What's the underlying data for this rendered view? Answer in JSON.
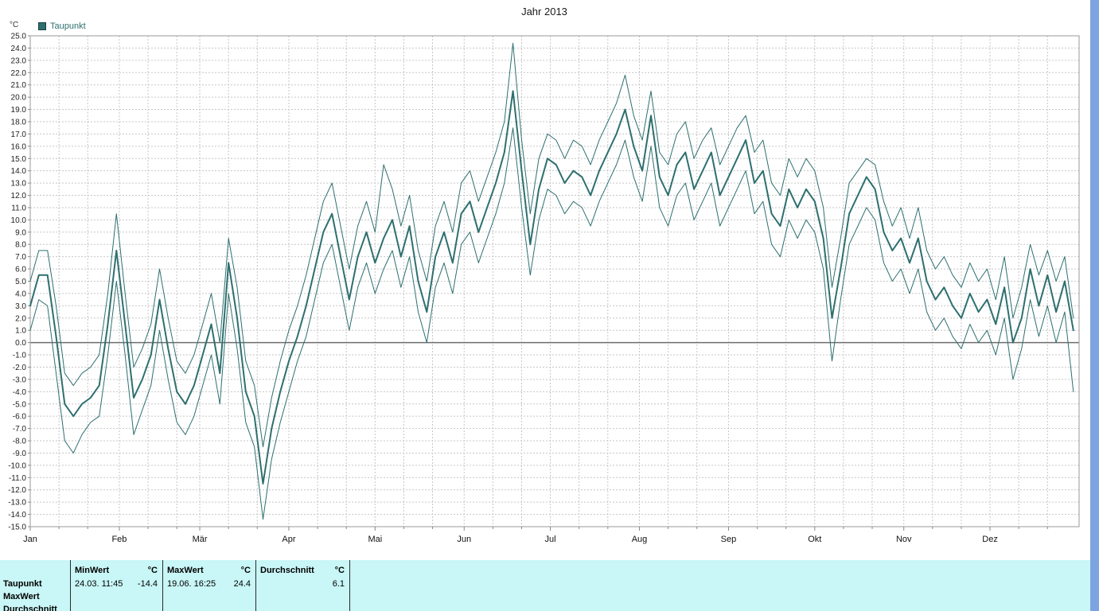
{
  "window": {
    "title": "Jahr 2013"
  },
  "chart": {
    "y_axis_unit": "°C",
    "legend_label": "Taupunkt"
  },
  "colors": {
    "series": "#2e6f6f",
    "table_background": "#c9f6f6",
    "window_edge": "#7da4e0",
    "grid": "#c6c6c6"
  },
  "chart_data": {
    "type": "line",
    "title": "Jahr 2013",
    "ylabel": "°C",
    "ylim": [
      -15.0,
      25.0
    ],
    "ytick_step": 1.0,
    "xlim": [
      1,
      366
    ],
    "x_unit": "day_of_year",
    "grid": "dashed; horizontal every 1.0 °C, vertical every 10 days; solid zero line",
    "legend_position": "top-left",
    "color": "#2e6f6f",
    "month_labels": [
      "Jan",
      "Feb",
      "Mär",
      "Apr",
      "Mai",
      "Jun",
      "Jul",
      "Aug",
      "Sep",
      "Okt",
      "Nov",
      "Dez"
    ],
    "month_start_days": [
      1,
      32,
      60,
      91,
      121,
      152,
      182,
      213,
      244,
      274,
      305,
      335
    ],
    "x": [
      1,
      4,
      7,
      10,
      13,
      16,
      19,
      22,
      25,
      28,
      31,
      34,
      37,
      40,
      43,
      46,
      49,
      52,
      55,
      58,
      61,
      64,
      67,
      70,
      73,
      76,
      79,
      82,
      85,
      88,
      91,
      94,
      97,
      100,
      103,
      106,
      109,
      112,
      115,
      118,
      121,
      124,
      127,
      130,
      133,
      136,
      139,
      142,
      145,
      148,
      151,
      154,
      157,
      160,
      163,
      166,
      169,
      172,
      175,
      178,
      181,
      184,
      187,
      190,
      193,
      196,
      199,
      202,
      205,
      208,
      211,
      214,
      217,
      220,
      223,
      226,
      229,
      232,
      235,
      238,
      241,
      244,
      247,
      250,
      253,
      256,
      259,
      262,
      265,
      268,
      271,
      274,
      277,
      280,
      283,
      286,
      289,
      292,
      295,
      298,
      301,
      304,
      307,
      310,
      313,
      316,
      319,
      322,
      325,
      328,
      331,
      334,
      337,
      340,
      343,
      346,
      349,
      352,
      355,
      358,
      361,
      364
    ],
    "series": [
      {
        "name": "Taupunkt Minimum",
        "width": 1,
        "values": [
          1.0,
          3.5,
          3.0,
          -2.5,
          -8.0,
          -9.0,
          -7.5,
          -6.5,
          -6.0,
          -1.0,
          5.0,
          -1.0,
          -7.5,
          -5.5,
          -3.5,
          1.0,
          -3.0,
          -6.5,
          -7.5,
          -6.0,
          -3.5,
          -1.0,
          -5.0,
          4.0,
          -0.5,
          -6.5,
          -8.5,
          -14.4,
          -9.5,
          -6.5,
          -4.0,
          -1.5,
          0.5,
          3.5,
          6.5,
          8.0,
          4.5,
          1.0,
          4.5,
          6.5,
          4.0,
          6.0,
          7.5,
          4.5,
          7.0,
          2.5,
          0.0,
          4.5,
          6.5,
          4.0,
          8.0,
          9.0,
          6.5,
          8.5,
          10.5,
          13.0,
          17.5,
          11.0,
          5.5,
          10.0,
          12.5,
          12.0,
          10.5,
          11.5,
          11.0,
          9.5,
          11.5,
          13.0,
          14.5,
          16.5,
          13.5,
          11.5,
          16.0,
          11.0,
          9.5,
          12.0,
          13.0,
          10.0,
          11.5,
          13.0,
          9.5,
          11.0,
          12.5,
          14.0,
          10.5,
          11.5,
          8.0,
          7.0,
          10.0,
          8.5,
          10.0,
          9.0,
          6.0,
          -1.5,
          3.5,
          8.0,
          9.5,
          11.0,
          10.0,
          6.5,
          5.0,
          6.0,
          4.0,
          6.0,
          2.5,
          1.0,
          2.0,
          0.5,
          -0.5,
          1.5,
          0.0,
          1.0,
          -1.0,
          2.0,
          -3.0,
          -0.5,
          3.5,
          0.5,
          3.0,
          0.0,
          2.5,
          -4.0
        ]
      },
      {
        "name": "Taupunkt Mittel",
        "width": 2,
        "values": [
          3.0,
          5.5,
          5.5,
          0.5,
          -5.0,
          -6.0,
          -5.0,
          -4.5,
          -3.5,
          1.5,
          7.5,
          1.5,
          -4.5,
          -3.0,
          -1.0,
          3.5,
          -0.5,
          -4.0,
          -5.0,
          -3.5,
          -1.0,
          1.5,
          -2.5,
          6.5,
          2.0,
          -4.0,
          -6.0,
          -11.5,
          -7.0,
          -4.0,
          -1.5,
          0.5,
          3.0,
          6.0,
          9.0,
          10.5,
          7.0,
          3.5,
          7.0,
          9.0,
          6.5,
          8.5,
          10.0,
          7.0,
          9.5,
          5.0,
          2.5,
          7.0,
          9.0,
          6.5,
          10.5,
          11.5,
          9.0,
          11.0,
          13.0,
          15.5,
          20.5,
          14.0,
          8.0,
          12.5,
          15.0,
          14.5,
          13.0,
          14.0,
          13.5,
          12.0,
          14.0,
          15.5,
          17.0,
          19.0,
          16.0,
          14.0,
          18.5,
          13.5,
          12.0,
          14.5,
          15.5,
          12.5,
          14.0,
          15.5,
          12.0,
          13.5,
          15.0,
          16.5,
          13.0,
          14.0,
          10.5,
          9.5,
          12.5,
          11.0,
          12.5,
          11.5,
          8.5,
          2.0,
          6.0,
          10.5,
          12.0,
          13.5,
          12.5,
          9.0,
          7.5,
          8.5,
          6.5,
          8.5,
          5.0,
          3.5,
          4.5,
          3.0,
          2.0,
          4.0,
          2.5,
          3.5,
          1.5,
          4.5,
          0.0,
          2.0,
          6.0,
          3.0,
          5.5,
          2.5,
          5.0,
          1.0
        ]
      },
      {
        "name": "Taupunkt Maximum",
        "width": 1,
        "values": [
          5.0,
          7.5,
          7.5,
          3.0,
          -2.5,
          -3.5,
          -2.5,
          -2.0,
          -1.0,
          4.0,
          10.5,
          4.0,
          -2.0,
          -0.5,
          1.5,
          6.0,
          2.0,
          -1.5,
          -2.5,
          -1.0,
          1.5,
          4.0,
          0.0,
          8.5,
          4.5,
          -1.5,
          -3.5,
          -8.5,
          -4.5,
          -1.5,
          1.0,
          3.0,
          5.5,
          8.5,
          11.5,
          13.0,
          9.5,
          6.0,
          9.5,
          11.5,
          9.0,
          14.5,
          12.5,
          9.5,
          12.0,
          7.5,
          5.0,
          9.5,
          11.5,
          9.0,
          13.0,
          14.0,
          11.5,
          13.5,
          15.5,
          18.0,
          24.4,
          16.5,
          10.5,
          15.0,
          17.0,
          16.5,
          15.0,
          16.5,
          16.0,
          14.5,
          16.5,
          18.0,
          19.5,
          21.8,
          18.5,
          16.5,
          20.5,
          15.5,
          14.5,
          17.0,
          18.0,
          15.0,
          16.5,
          17.5,
          14.5,
          16.0,
          17.5,
          18.5,
          15.5,
          16.5,
          13.0,
          12.0,
          15.0,
          13.5,
          15.0,
          14.0,
          11.0,
          4.5,
          8.5,
          13.0,
          14.0,
          15.0,
          14.5,
          11.5,
          9.5,
          11.0,
          8.5,
          11.0,
          7.5,
          6.0,
          7.0,
          5.5,
          4.5,
          6.5,
          5.0,
          6.0,
          3.5,
          7.0,
          2.0,
          4.5,
          8.0,
          5.5,
          7.5,
          5.0,
          7.0,
          2.0
        ]
      }
    ]
  },
  "summary_table": {
    "min_header": "MinWert",
    "max_header": "MaxWert",
    "avg_header": "Durchschnitt",
    "unit_min": "°C",
    "unit_max": "°C",
    "unit_avg": "°C",
    "taupunkt_row": {
      "label": "Taupunkt",
      "min_time": "24.03.  11:45",
      "min_value": "-14.4",
      "max_time": "19.06.  16:25",
      "max_value": "24.4",
      "avg_value": "6.1"
    },
    "extra_row_labels": [
      "MaxWert",
      "Durchschnitt"
    ]
  }
}
